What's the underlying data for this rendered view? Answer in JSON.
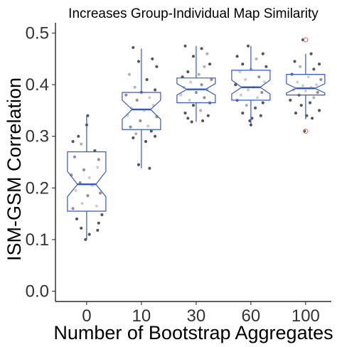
{
  "chart_data": {
    "type": "boxplot",
    "title": "Increases Group-Individual Map Similarity",
    "xlabel": "Number of Bootstrap Aggregates",
    "ylabel": "ISM-GSM Correlation",
    "categories": [
      "0",
      "10",
      "30",
      "60",
      "100"
    ],
    "ylim": [
      -0.02,
      0.52
    ],
    "yticks": [
      0.0,
      0.1,
      0.2,
      0.3,
      0.4,
      0.5
    ],
    "ytick_labels": [
      "0.0",
      "0.1",
      "0.2",
      "0.3",
      "0.4",
      "0.5"
    ],
    "grid": false,
    "notched": true,
    "colors": {
      "box": "#3355dd",
      "point_dark": "#3a3a3a",
      "point_light": "#aaaaaa",
      "outlier": "#e06666"
    },
    "boxes": [
      {
        "category": "0",
        "whisker_low": 0.1,
        "q1": 0.155,
        "median": 0.207,
        "q3": 0.27,
        "whisker_high": 0.34,
        "notch": [
          0.183,
          0.232
        ],
        "outliers": []
      },
      {
        "category": "10",
        "whisker_low": 0.238,
        "q1": 0.313,
        "median": 0.352,
        "q3": 0.385,
        "whisker_high": 0.47,
        "notch": [
          0.333,
          0.37
        ],
        "outliers": []
      },
      {
        "category": "30",
        "whisker_low": 0.328,
        "q1": 0.365,
        "median": 0.391,
        "q3": 0.413,
        "whisker_high": 0.475,
        "notch": [
          0.38,
          0.402
        ],
        "outliers": []
      },
      {
        "category": "60",
        "whisker_low": 0.322,
        "q1": 0.37,
        "median": 0.395,
        "q3": 0.428,
        "whisker_high": 0.475,
        "notch": [
          0.382,
          0.409
        ],
        "outliers": []
      },
      {
        "category": "100",
        "whisker_low": 0.333,
        "q1": 0.38,
        "median": 0.393,
        "q3": 0.42,
        "whisker_high": 0.46,
        "notch": [
          0.384,
          0.402
        ],
        "outliers": [
          0.487,
          0.31
        ]
      }
    ],
    "points": [
      [
        {
          "dx": -0.25,
          "y": 0.29,
          "c": "d"
        },
        {
          "dx": -0.15,
          "y": 0.3,
          "c": "d"
        },
        {
          "dx": 0.0,
          "y": 0.322,
          "c": "d"
        },
        {
          "dx": 0.02,
          "y": 0.34,
          "c": "d"
        },
        {
          "dx": -0.1,
          "y": 0.285,
          "c": "l"
        },
        {
          "dx": 0.15,
          "y": 0.272,
          "c": "d"
        },
        {
          "dx": -0.22,
          "y": 0.26,
          "c": "d"
        },
        {
          "dx": 0.22,
          "y": 0.255,
          "c": "d"
        },
        {
          "dx": 0.2,
          "y": 0.24,
          "c": "l"
        },
        {
          "dx": -0.05,
          "y": 0.235,
          "c": "d"
        },
        {
          "dx": -0.28,
          "y": 0.225,
          "c": "d"
        },
        {
          "dx": 0.05,
          "y": 0.22,
          "c": "l"
        },
        {
          "dx": -0.12,
          "y": 0.21,
          "c": "d"
        },
        {
          "dx": 0.1,
          "y": 0.205,
          "c": "l"
        },
        {
          "dx": -0.2,
          "y": 0.195,
          "c": "l"
        },
        {
          "dx": 0.25,
          "y": 0.19,
          "c": "d"
        },
        {
          "dx": 0.02,
          "y": 0.185,
          "c": "d"
        },
        {
          "dx": -0.08,
          "y": 0.17,
          "c": "l"
        },
        {
          "dx": 0.18,
          "y": 0.165,
          "c": "l"
        },
        {
          "dx": -0.25,
          "y": 0.16,
          "c": "d"
        },
        {
          "dx": 0.28,
          "y": 0.148,
          "c": "d"
        },
        {
          "dx": -0.18,
          "y": 0.14,
          "c": "d"
        },
        {
          "dx": 0.22,
          "y": 0.132,
          "c": "d"
        },
        {
          "dx": -0.1,
          "y": 0.122,
          "c": "d"
        },
        {
          "dx": 0.2,
          "y": 0.118,
          "c": "d"
        },
        {
          "dx": 0.05,
          "y": 0.11,
          "c": "d"
        },
        {
          "dx": -0.02,
          "y": 0.1,
          "c": "d"
        }
      ],
      [
        {
          "dx": -0.15,
          "y": 0.472,
          "c": "d"
        },
        {
          "dx": 0.2,
          "y": 0.45,
          "c": "d"
        },
        {
          "dx": -0.05,
          "y": 0.445,
          "c": "d"
        },
        {
          "dx": 0.28,
          "y": 0.435,
          "c": "d"
        },
        {
          "dx": -0.22,
          "y": 0.42,
          "c": "l"
        },
        {
          "dx": 0.1,
          "y": 0.41,
          "c": "d"
        },
        {
          "dx": -0.12,
          "y": 0.395,
          "c": "l"
        },
        {
          "dx": 0.25,
          "y": 0.39,
          "c": "d"
        },
        {
          "dx": 0.0,
          "y": 0.385,
          "c": "d"
        },
        {
          "dx": -0.28,
          "y": 0.38,
          "c": "d"
        },
        {
          "dx": 0.15,
          "y": 0.375,
          "c": "l"
        },
        {
          "dx": -0.08,
          "y": 0.37,
          "c": "d"
        },
        {
          "dx": 0.22,
          "y": 0.36,
          "c": "l"
        },
        {
          "dx": -0.18,
          "y": 0.355,
          "c": "l"
        },
        {
          "dx": 0.05,
          "y": 0.35,
          "c": "l"
        },
        {
          "dx": -0.25,
          "y": 0.34,
          "c": "l"
        },
        {
          "dx": 0.28,
          "y": 0.338,
          "c": "d"
        },
        {
          "dx": -0.02,
          "y": 0.33,
          "c": "d"
        },
        {
          "dx": 0.12,
          "y": 0.32,
          "c": "l"
        },
        {
          "dx": -0.2,
          "y": 0.318,
          "c": "d"
        },
        {
          "dx": 0.18,
          "y": 0.31,
          "c": "d"
        },
        {
          "dx": -0.1,
          "y": 0.305,
          "c": "l"
        },
        {
          "dx": 0.25,
          "y": 0.3,
          "c": "d"
        },
        {
          "dx": -0.15,
          "y": 0.297,
          "c": "d"
        },
        {
          "dx": 0.08,
          "y": 0.29,
          "c": "d"
        },
        {
          "dx": -0.05,
          "y": 0.245,
          "c": "d"
        },
        {
          "dx": 0.15,
          "y": 0.238,
          "c": "d"
        }
      ],
      [
        {
          "dx": -0.2,
          "y": 0.475,
          "c": "d"
        },
        {
          "dx": 0.1,
          "y": 0.47,
          "c": "d"
        },
        {
          "dx": 0.2,
          "y": 0.46,
          "c": "l"
        },
        {
          "dx": -0.05,
          "y": 0.455,
          "c": "d"
        },
        {
          "dx": 0.25,
          "y": 0.44,
          "c": "d"
        },
        {
          "dx": 0.15,
          "y": 0.435,
          "c": "l"
        },
        {
          "dx": -0.15,
          "y": 0.425,
          "c": "d"
        },
        {
          "dx": 0.05,
          "y": 0.42,
          "c": "l"
        },
        {
          "dx": -0.25,
          "y": 0.415,
          "c": "d"
        },
        {
          "dx": 0.28,
          "y": 0.41,
          "c": "d"
        },
        {
          "dx": -0.1,
          "y": 0.405,
          "c": "l"
        },
        {
          "dx": 0.1,
          "y": 0.4,
          "c": "d"
        },
        {
          "dx": -0.22,
          "y": 0.395,
          "c": "l"
        },
        {
          "dx": 0.2,
          "y": 0.39,
          "c": "l"
        },
        {
          "dx": 0.0,
          "y": 0.385,
          "c": "d"
        },
        {
          "dx": -0.28,
          "y": 0.38,
          "c": "l"
        },
        {
          "dx": 0.15,
          "y": 0.375,
          "c": "d"
        },
        {
          "dx": -0.12,
          "y": 0.37,
          "c": "l"
        },
        {
          "dx": 0.25,
          "y": 0.365,
          "c": "d"
        },
        {
          "dx": -0.05,
          "y": 0.36,
          "c": "d"
        },
        {
          "dx": 0.08,
          "y": 0.35,
          "c": "l"
        },
        {
          "dx": -0.2,
          "y": 0.345,
          "c": "d"
        },
        {
          "dx": 0.22,
          "y": 0.34,
          "c": "d"
        },
        {
          "dx": -0.15,
          "y": 0.335,
          "c": "d"
        },
        {
          "dx": 0.12,
          "y": 0.33,
          "c": "d"
        },
        {
          "dx": -0.08,
          "y": 0.328,
          "c": "d"
        }
      ],
      [
        {
          "dx": -0.05,
          "y": 0.475,
          "c": "d"
        },
        {
          "dx": 0.22,
          "y": 0.46,
          "c": "d"
        },
        {
          "dx": -0.25,
          "y": 0.455,
          "c": "d"
        },
        {
          "dx": 0.1,
          "y": 0.45,
          "c": "l"
        },
        {
          "dx": -0.15,
          "y": 0.44,
          "c": "d"
        },
        {
          "dx": 0.28,
          "y": 0.435,
          "c": "d"
        },
        {
          "dx": 0.0,
          "y": 0.43,
          "c": "l"
        },
        {
          "dx": -0.2,
          "y": 0.425,
          "c": "l"
        },
        {
          "dx": 0.15,
          "y": 0.415,
          "c": "d"
        },
        {
          "dx": -0.1,
          "y": 0.41,
          "c": "l"
        },
        {
          "dx": 0.25,
          "y": 0.405,
          "c": "l"
        },
        {
          "dx": -0.28,
          "y": 0.4,
          "c": "d"
        },
        {
          "dx": 0.05,
          "y": 0.395,
          "c": "l"
        },
        {
          "dx": -0.05,
          "y": 0.39,
          "c": "l"
        },
        {
          "dx": 0.2,
          "y": 0.385,
          "c": "d"
        },
        {
          "dx": -0.18,
          "y": 0.38,
          "c": "l"
        },
        {
          "dx": 0.12,
          "y": 0.375,
          "c": "l"
        },
        {
          "dx": -0.25,
          "y": 0.37,
          "c": "d"
        },
        {
          "dx": 0.22,
          "y": 0.365,
          "c": "d"
        },
        {
          "dx": -0.08,
          "y": 0.36,
          "c": "l"
        },
        {
          "dx": 0.08,
          "y": 0.355,
          "c": "d"
        },
        {
          "dx": -0.15,
          "y": 0.345,
          "c": "d"
        },
        {
          "dx": 0.18,
          "y": 0.34,
          "c": "d"
        },
        {
          "dx": 0.02,
          "y": 0.335,
          "c": "d"
        },
        {
          "dx": -0.02,
          "y": 0.33,
          "c": "d"
        },
        {
          "dx": 0.0,
          "y": 0.322,
          "c": "d"
        }
      ],
      [
        {
          "dx": -0.05,
          "y": 0.487,
          "c": "d"
        },
        {
          "dx": 0.1,
          "y": 0.46,
          "c": "d"
        },
        {
          "dx": -0.2,
          "y": 0.445,
          "c": "d"
        },
        {
          "dx": 0.25,
          "y": 0.44,
          "c": "d"
        },
        {
          "dx": -0.1,
          "y": 0.435,
          "c": "l"
        },
        {
          "dx": 0.15,
          "y": 0.43,
          "c": "d"
        },
        {
          "dx": -0.25,
          "y": 0.42,
          "c": "d"
        },
        {
          "dx": 0.05,
          "y": 0.415,
          "c": "l"
        },
        {
          "dx": 0.28,
          "y": 0.41,
          "c": "d"
        },
        {
          "dx": -0.15,
          "y": 0.405,
          "c": "l"
        },
        {
          "dx": 0.2,
          "y": 0.4,
          "c": "l"
        },
        {
          "dx": -0.05,
          "y": 0.398,
          "c": "l"
        },
        {
          "dx": 0.1,
          "y": 0.395,
          "c": "l"
        },
        {
          "dx": -0.22,
          "y": 0.39,
          "c": "l"
        },
        {
          "dx": 0.0,
          "y": 0.388,
          "c": "l"
        },
        {
          "dx": 0.22,
          "y": 0.385,
          "c": "d"
        },
        {
          "dx": -0.12,
          "y": 0.38,
          "c": "d"
        },
        {
          "dx": 0.15,
          "y": 0.375,
          "c": "l"
        },
        {
          "dx": -0.28,
          "y": 0.37,
          "c": "d"
        },
        {
          "dx": 0.08,
          "y": 0.365,
          "c": "d"
        },
        {
          "dx": -0.08,
          "y": 0.36,
          "c": "d"
        },
        {
          "dx": 0.25,
          "y": 0.35,
          "c": "d"
        },
        {
          "dx": -0.18,
          "y": 0.345,
          "c": "d"
        },
        {
          "dx": 0.02,
          "y": 0.34,
          "c": "d"
        },
        {
          "dx": 0.12,
          "y": 0.335,
          "c": "d"
        },
        {
          "dx": -0.02,
          "y": 0.31,
          "c": "d"
        }
      ]
    ]
  }
}
